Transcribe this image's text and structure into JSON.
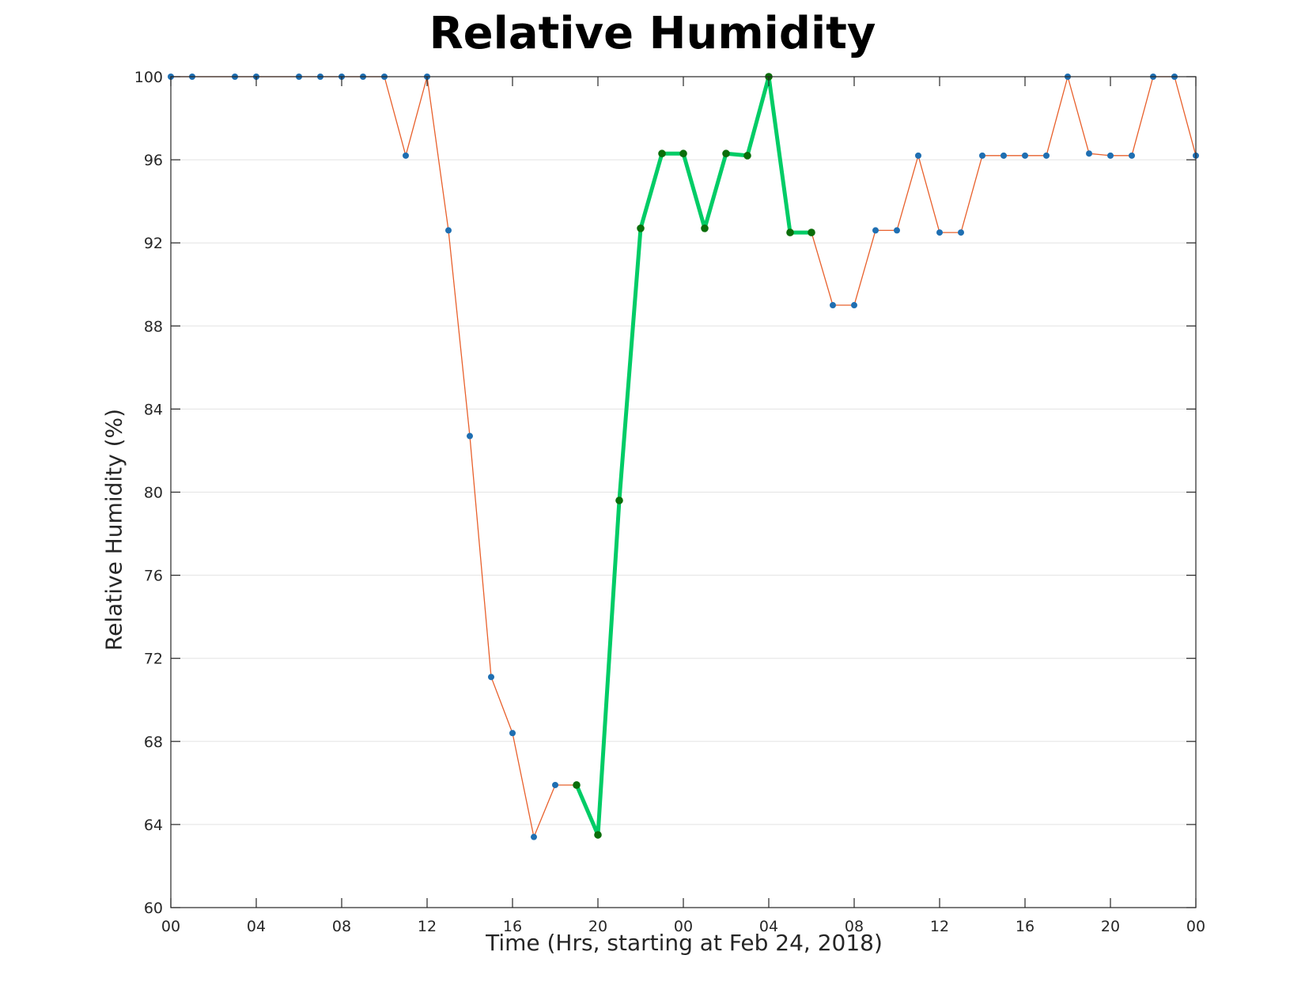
{
  "chart_data": {
    "type": "line",
    "title": "Relative Humidity",
    "xlabel": "Time (Hrs, starting at Feb 24, 2018)",
    "ylabel": "Relative Humidity (%)",
    "xlim": [
      0,
      48
    ],
    "ylim": [
      60,
      100
    ],
    "yticks": [
      60,
      64,
      68,
      72,
      76,
      80,
      84,
      88,
      92,
      96,
      100
    ],
    "xticks": [
      0,
      4,
      8,
      12,
      16,
      20,
      24,
      28,
      32,
      36,
      40,
      44,
      48
    ],
    "xticklabels": [
      "00",
      "04",
      "08",
      "12",
      "16",
      "20",
      "00",
      "04",
      "08",
      "12",
      "16",
      "20",
      "00"
    ],
    "grid": "horizontal",
    "series": [
      {
        "color": "#e8602c",
        "marker_color": "#1f6fb2",
        "x": [
          0,
          1,
          3,
          4,
          6,
          7,
          8,
          9,
          10,
          11,
          12,
          13,
          14,
          15,
          16,
          17,
          18,
          19,
          20,
          21,
          22,
          23,
          24,
          25,
          26,
          27,
          28,
          29,
          30,
          31,
          32,
          33,
          34,
          35,
          36,
          37,
          38,
          39,
          40,
          41,
          42,
          43,
          44,
          45,
          46,
          47,
          48
        ],
        "y": [
          100,
          100,
          100,
          100,
          100,
          100,
          100,
          100,
          100,
          96.2,
          100,
          92.6,
          82.7,
          71.1,
          68.4,
          63.4,
          65.9,
          65.9,
          63.5,
          79.6,
          92.7,
          96.3,
          96.3,
          92.7,
          96.3,
          96.2,
          100,
          92.5,
          92.5,
          89.0,
          89.0,
          92.6,
          92.6,
          96.2,
          92.5,
          92.5,
          96.2,
          96.2,
          96.2,
          96.2,
          100,
          96.3,
          96.2,
          96.2,
          100,
          100,
          96.2
        ]
      },
      {
        "color": "#00cc66",
        "marker_color": "#0a6e0a",
        "x": [
          19,
          20,
          21,
          22,
          23,
          24,
          25,
          26,
          27,
          28,
          29,
          30
        ],
        "y": [
          65.9,
          63.5,
          79.6,
          92.7,
          96.3,
          96.3,
          92.7,
          96.3,
          96.2,
          100,
          92.5,
          92.5
        ]
      }
    ]
  }
}
